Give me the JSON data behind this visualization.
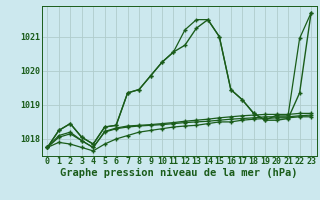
{
  "title": "Graphe pression niveau de la mer (hPa)",
  "bg_color": "#cce8ee",
  "grid_color": "#b0cccc",
  "line_color": "#1a5c1a",
  "hours": [
    0,
    1,
    2,
    3,
    4,
    5,
    6,
    7,
    8,
    9,
    10,
    11,
    12,
    13,
    14,
    15,
    16,
    17,
    18,
    19,
    20,
    21,
    22,
    23
  ],
  "series_A": [
    1017.75,
    1018.25,
    1018.45,
    1018.05,
    1017.85,
    1018.35,
    1018.4,
    1019.35,
    1019.45,
    1019.85,
    1020.25,
    1020.55,
    1020.75,
    1021.25,
    1021.5,
    1021.0,
    1019.45,
    1019.15,
    1018.75,
    1018.55,
    1018.55,
    1018.6,
    1019.35,
    1021.7
  ],
  "series_B": [
    1017.75,
    1017.9,
    1017.85,
    1017.75,
    1017.65,
    1017.85,
    1018.0,
    1018.1,
    1018.2,
    1018.25,
    1018.3,
    1018.35,
    1018.38,
    1018.4,
    1018.45,
    1018.5,
    1018.5,
    1018.55,
    1018.58,
    1018.6,
    1018.62,
    1018.62,
    1018.65,
    1018.65
  ],
  "series_C": [
    1017.75,
    1018.05,
    1018.15,
    1017.95,
    1017.75,
    1018.2,
    1018.3,
    1018.35,
    1018.38,
    1018.4,
    1018.42,
    1018.45,
    1018.48,
    1018.5,
    1018.52,
    1018.55,
    1018.58,
    1018.6,
    1018.62,
    1018.65,
    1018.65,
    1018.65,
    1018.68,
    1018.7
  ],
  "series_D": [
    1017.75,
    1018.1,
    1018.2,
    1017.95,
    1017.75,
    1018.22,
    1018.32,
    1018.38,
    1018.4,
    1018.42,
    1018.45,
    1018.48,
    1018.52,
    1018.55,
    1018.58,
    1018.62,
    1018.65,
    1018.68,
    1018.7,
    1018.72,
    1018.72,
    1018.72,
    1018.75,
    1018.75
  ],
  "series_E": [
    1017.75,
    1018.25,
    1018.45,
    1018.05,
    1017.85,
    1018.35,
    1018.4,
    1019.35,
    1019.45,
    1019.85,
    1020.25,
    1020.55,
    1021.2,
    1021.5,
    1021.5,
    1021.0,
    1019.45,
    1019.15,
    1018.75,
    1018.55,
    1018.7,
    1018.7,
    1020.95,
    1021.7
  ],
  "ylim": [
    1017.5,
    1021.9
  ],
  "yticks": [
    1018,
    1019,
    1020,
    1021
  ],
  "xlim": [
    -0.5,
    23.5
  ],
  "marker_size": 2.5,
  "line_width": 1.0,
  "title_fontsize": 7.5,
  "tick_fontsize": 6.0
}
